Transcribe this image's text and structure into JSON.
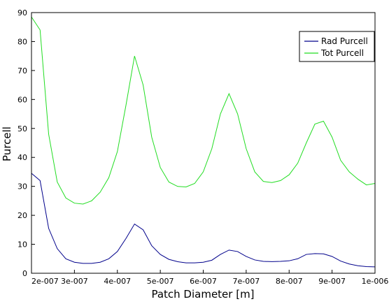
{
  "chart_data": {
    "type": "line",
    "title": "",
    "xlabel": "Patch Diameter [m]",
    "ylabel": "Purcell",
    "xlim": [
      2e-07,
      1e-06
    ],
    "ylim": [
      0,
      90
    ],
    "x_tick_labels": [
      "2e-007",
      "3e-007",
      "4e-007",
      "5e-007",
      "6e-007",
      "7e-007",
      "8e-007",
      "9e-007",
      "1e-006"
    ],
    "y_tick_labels": [
      "0",
      "10",
      "20",
      "30",
      "40",
      "50",
      "60",
      "70",
      "80",
      "90"
    ],
    "legend_position": "top-right",
    "grid": false,
    "x": [
      2e-07,
      2.2e-07,
      2.4e-07,
      2.6e-07,
      2.8e-07,
      3e-07,
      3.2e-07,
      3.4e-07,
      3.6e-07,
      3.8e-07,
      4e-07,
      4.2e-07,
      4.4e-07,
      4.6e-07,
      4.8e-07,
      5e-07,
      5.2e-07,
      5.4e-07,
      5.6e-07,
      5.8e-07,
      6e-07,
      6.2e-07,
      6.4e-07,
      6.6e-07,
      6.8e-07,
      7e-07,
      7.2e-07,
      7.4e-07,
      7.6e-07,
      7.8e-07,
      8e-07,
      8.2e-07,
      8.4e-07,
      8.6e-07,
      8.8e-07,
      9e-07,
      9.2e-07,
      9.4e-07,
      9.6e-07,
      9.8e-07,
      1e-06
    ],
    "series": [
      {
        "name": "Rad Purcell",
        "color": "#00008b",
        "values": [
          34.5,
          32,
          15.5,
          8.5,
          5,
          3.8,
          3.4,
          3.4,
          3.8,
          5,
          7.5,
          12,
          17,
          15,
          9.5,
          6.5,
          4.8,
          4.0,
          3.6,
          3.6,
          3.8,
          4.5,
          6.5,
          8.0,
          7.5,
          5.8,
          4.6,
          4.1,
          4.0,
          4.1,
          4.3,
          5.0,
          6.5,
          6.8,
          6.7,
          5.8,
          4.2,
          3.2,
          2.6,
          2.3,
          2.2
        ]
      },
      {
        "name": "Tot Purcell",
        "color": "#22dd22",
        "values": [
          88.5,
          84,
          48,
          31.5,
          26,
          24.2,
          23.9,
          25,
          28,
          33,
          42,
          58,
          75,
          65,
          47,
          36.5,
          31.5,
          30,
          29.8,
          31,
          35,
          43,
          55,
          62,
          55,
          43,
          35,
          31.7,
          31.3,
          32,
          34,
          38,
          45,
          51.5,
          52.5,
          47,
          39,
          35,
          32.5,
          30.5,
          31
        ]
      }
    ]
  }
}
